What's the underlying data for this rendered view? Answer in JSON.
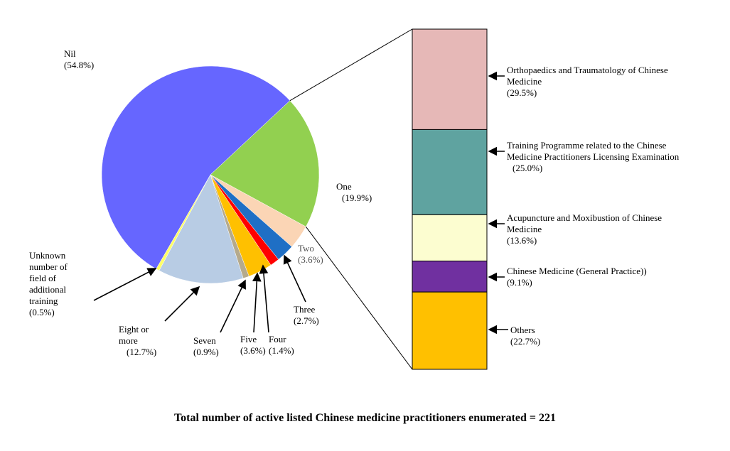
{
  "chart_data": [
    {
      "type": "pie",
      "categories": [
        "One",
        "Two",
        "Three",
        "Four",
        "Five",
        "Seven",
        "Eight or more",
        "Unknown number of field of additional training",
        "Nil"
      ],
      "values": [
        19.9,
        3.6,
        2.7,
        1.4,
        3.6,
        0.9,
        12.7,
        0.5,
        54.8
      ],
      "value_labels": [
        "(19.9%)",
        "(3.6%)",
        "(2.7%)",
        "(1.4%)",
        "(3.6%)",
        "(0.9%)",
        "(12.7%)",
        "(0.5%)",
        "(54.8%)"
      ],
      "colors": [
        "#92d050",
        "#fbd5b5",
        "#1f6fc5",
        "#ff0000",
        "#ffc000",
        "#b5aa8c",
        "#b8cce4",
        "#ffff66",
        "#6666ff"
      ]
    },
    {
      "type": "bar",
      "stacked": true,
      "categories": [
        "Orthopaedics and Traumatology of Chinese Medicine",
        "Training Programme related to the Chinese Medicine Practitioners Licensing Examination",
        "Acupuncture and Moxibustion of Chinese Medicine",
        "Chinese Medicine (General Practice))",
        "Others"
      ],
      "values": [
        29.5,
        25.0,
        13.6,
        9.1,
        22.7
      ],
      "value_labels": [
        "(29.5%)",
        "(25.0%)",
        "(13.6%)",
        "(9.1%)",
        "(22.7%)"
      ],
      "colors": [
        "#e6b8b7",
        "#5fa3a0",
        "#fcfdd0",
        "#7030a0",
        "#ffc000"
      ]
    }
  ],
  "footnote": "Total number of active listed Chinese medicine practitioners enumerated = 221"
}
